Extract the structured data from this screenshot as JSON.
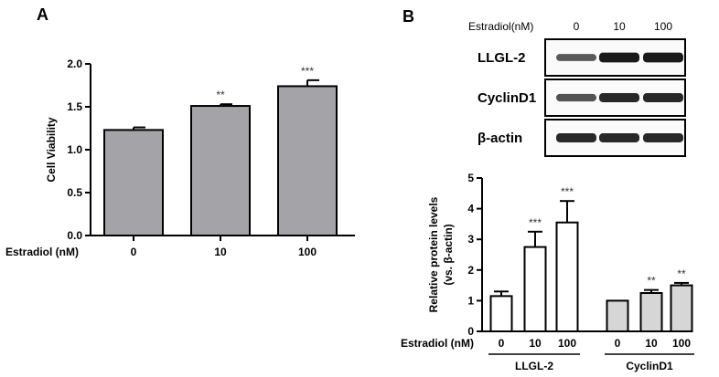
{
  "panels": {
    "a_letter": "A",
    "b_letter": "B"
  },
  "western_blot": {
    "treatment_label": "Estradiol(nM)",
    "doses": [
      "0",
      "10",
      "100"
    ],
    "rows": [
      {
        "label": "LLGL-2",
        "intensity": [
          0.55,
          0.95,
          0.95
        ]
      },
      {
        "label": "CyclinD1",
        "intensity": [
          0.6,
          0.85,
          0.85
        ]
      },
      {
        "label": "β-actin",
        "intensity": [
          0.85,
          0.85,
          0.85
        ]
      }
    ]
  },
  "chart_data": [
    {
      "type": "bar",
      "panel": "A",
      "categories": [
        "0",
        "10",
        "100"
      ],
      "values": [
        1.23,
        1.51,
        1.74
      ],
      "errors": [
        0.03,
        0.02,
        0.07
      ],
      "significance": [
        "",
        "**",
        "***"
      ],
      "xlabel": "Estradiol (nM)",
      "ylabel": "Cell Viability",
      "ylim": [
        0,
        2.0
      ],
      "yticks": [
        "0.0",
        "0.5",
        "1.0",
        "1.5",
        "2.0"
      ],
      "bar_color": "#a3a3a8",
      "grid": false
    },
    {
      "type": "bar",
      "panel": "B",
      "xlabel": "Estradiol (nM)",
      "ylabel": "Relative protein levels",
      "ylabel_line2": "(vs. β-actin)",
      "ylim": [
        0,
        5
      ],
      "yticks": [
        "0",
        "1",
        "2",
        "3",
        "4",
        "5"
      ],
      "grid": false,
      "groups": [
        {
          "name": "LLGL-2",
          "categories": [
            "0",
            "10",
            "100"
          ],
          "values": [
            1.15,
            2.75,
            3.55
          ],
          "errors": [
            0.15,
            0.5,
            0.7
          ],
          "significance": [
            "",
            "***",
            "***"
          ],
          "bar_color": "#ffffff"
        },
        {
          "name": "CyclinD1",
          "categories": [
            "0",
            "10",
            "100"
          ],
          "values": [
            1.0,
            1.25,
            1.5
          ],
          "errors": [
            0.0,
            0.1,
            0.08
          ],
          "significance": [
            "",
            "**",
            "**"
          ],
          "bar_color": "#d6d6d6"
        }
      ]
    }
  ]
}
